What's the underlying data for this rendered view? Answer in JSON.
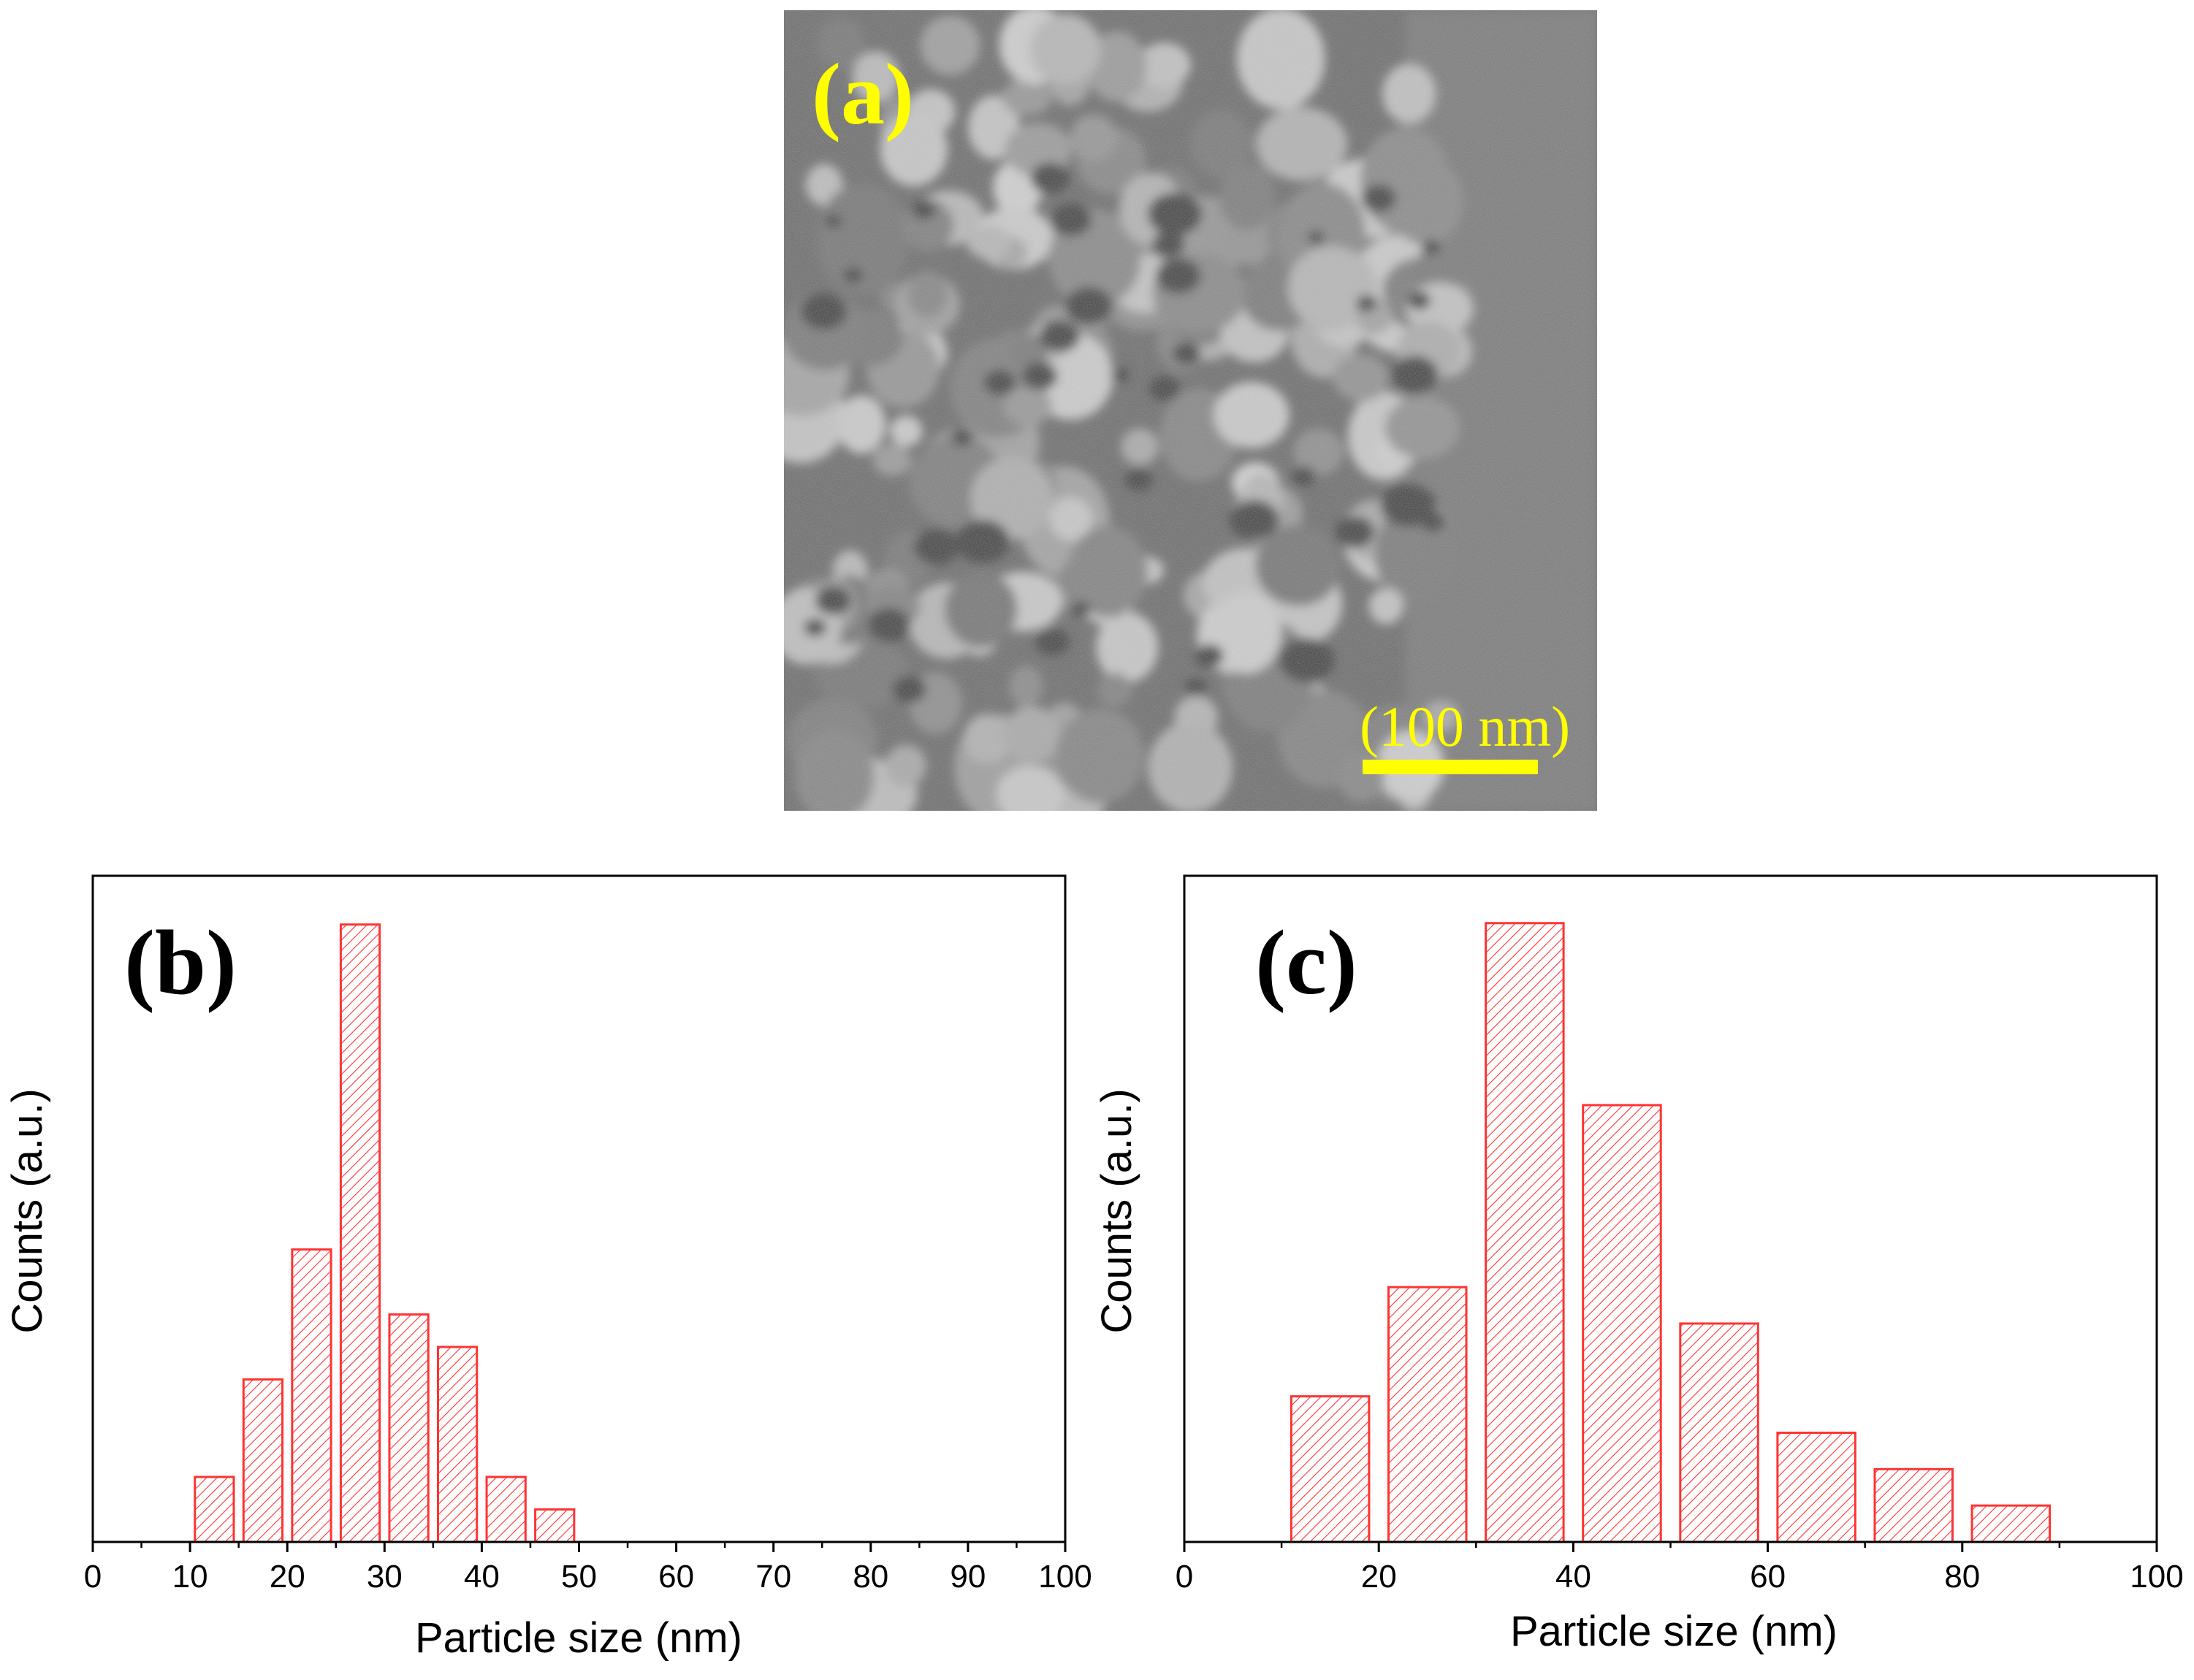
{
  "figure": {
    "panel_a": {
      "label": "(a)",
      "scale_bar_label": "(100 nm)",
      "scale_bar_nm": 100,
      "label_color": "#ffff00"
    }
  },
  "chart_data": [
    {
      "panel_label": "(b)",
      "type": "bar",
      "xlabel": "Particle size (nm)",
      "ylabel": "Counts (a.u.)",
      "xlim": [
        0,
        100
      ],
      "ylim": [
        0,
        20.5
      ],
      "xticks": [
        0,
        10,
        20,
        30,
        40,
        50,
        60,
        70,
        80,
        90,
        100
      ],
      "minor_ticks": true,
      "y_ticks_shown": false,
      "bar_color": "#ff3333",
      "bar_fill": "hatched",
      "bins": [
        {
          "start": 10.5,
          "end": 14.5,
          "value": 2
        },
        {
          "start": 15.5,
          "end": 19.5,
          "value": 5
        },
        {
          "start": 20.5,
          "end": 24.5,
          "value": 9
        },
        {
          "start": 25.5,
          "end": 29.5,
          "value": 19
        },
        {
          "start": 30.5,
          "end": 34.5,
          "value": 7
        },
        {
          "start": 35.5,
          "end": 39.5,
          "value": 6
        },
        {
          "start": 40.5,
          "end": 44.5,
          "value": 2
        },
        {
          "start": 45.5,
          "end": 49.5,
          "value": 1
        }
      ]
    },
    {
      "panel_label": "(c)",
      "type": "bar",
      "xlabel": "Particle size (nm)",
      "ylabel": "Counts (a.u.)",
      "xlim": [
        0,
        100
      ],
      "ylim": [
        0,
        18.3
      ],
      "xticks": [
        0,
        20,
        40,
        60,
        80,
        100
      ],
      "minor_ticks": true,
      "y_ticks_shown": false,
      "bar_color": "#ff3333",
      "bar_fill": "hatched",
      "bins": [
        {
          "start": 11,
          "end": 19,
          "value": 4
        },
        {
          "start": 21,
          "end": 29,
          "value": 7
        },
        {
          "start": 31,
          "end": 39,
          "value": 17
        },
        {
          "start": 41,
          "end": 49,
          "value": 12
        },
        {
          "start": 51,
          "end": 59,
          "value": 6
        },
        {
          "start": 61,
          "end": 69,
          "value": 3
        },
        {
          "start": 71,
          "end": 79,
          "value": 2
        },
        {
          "start": 81,
          "end": 89,
          "value": 1
        }
      ]
    }
  ]
}
